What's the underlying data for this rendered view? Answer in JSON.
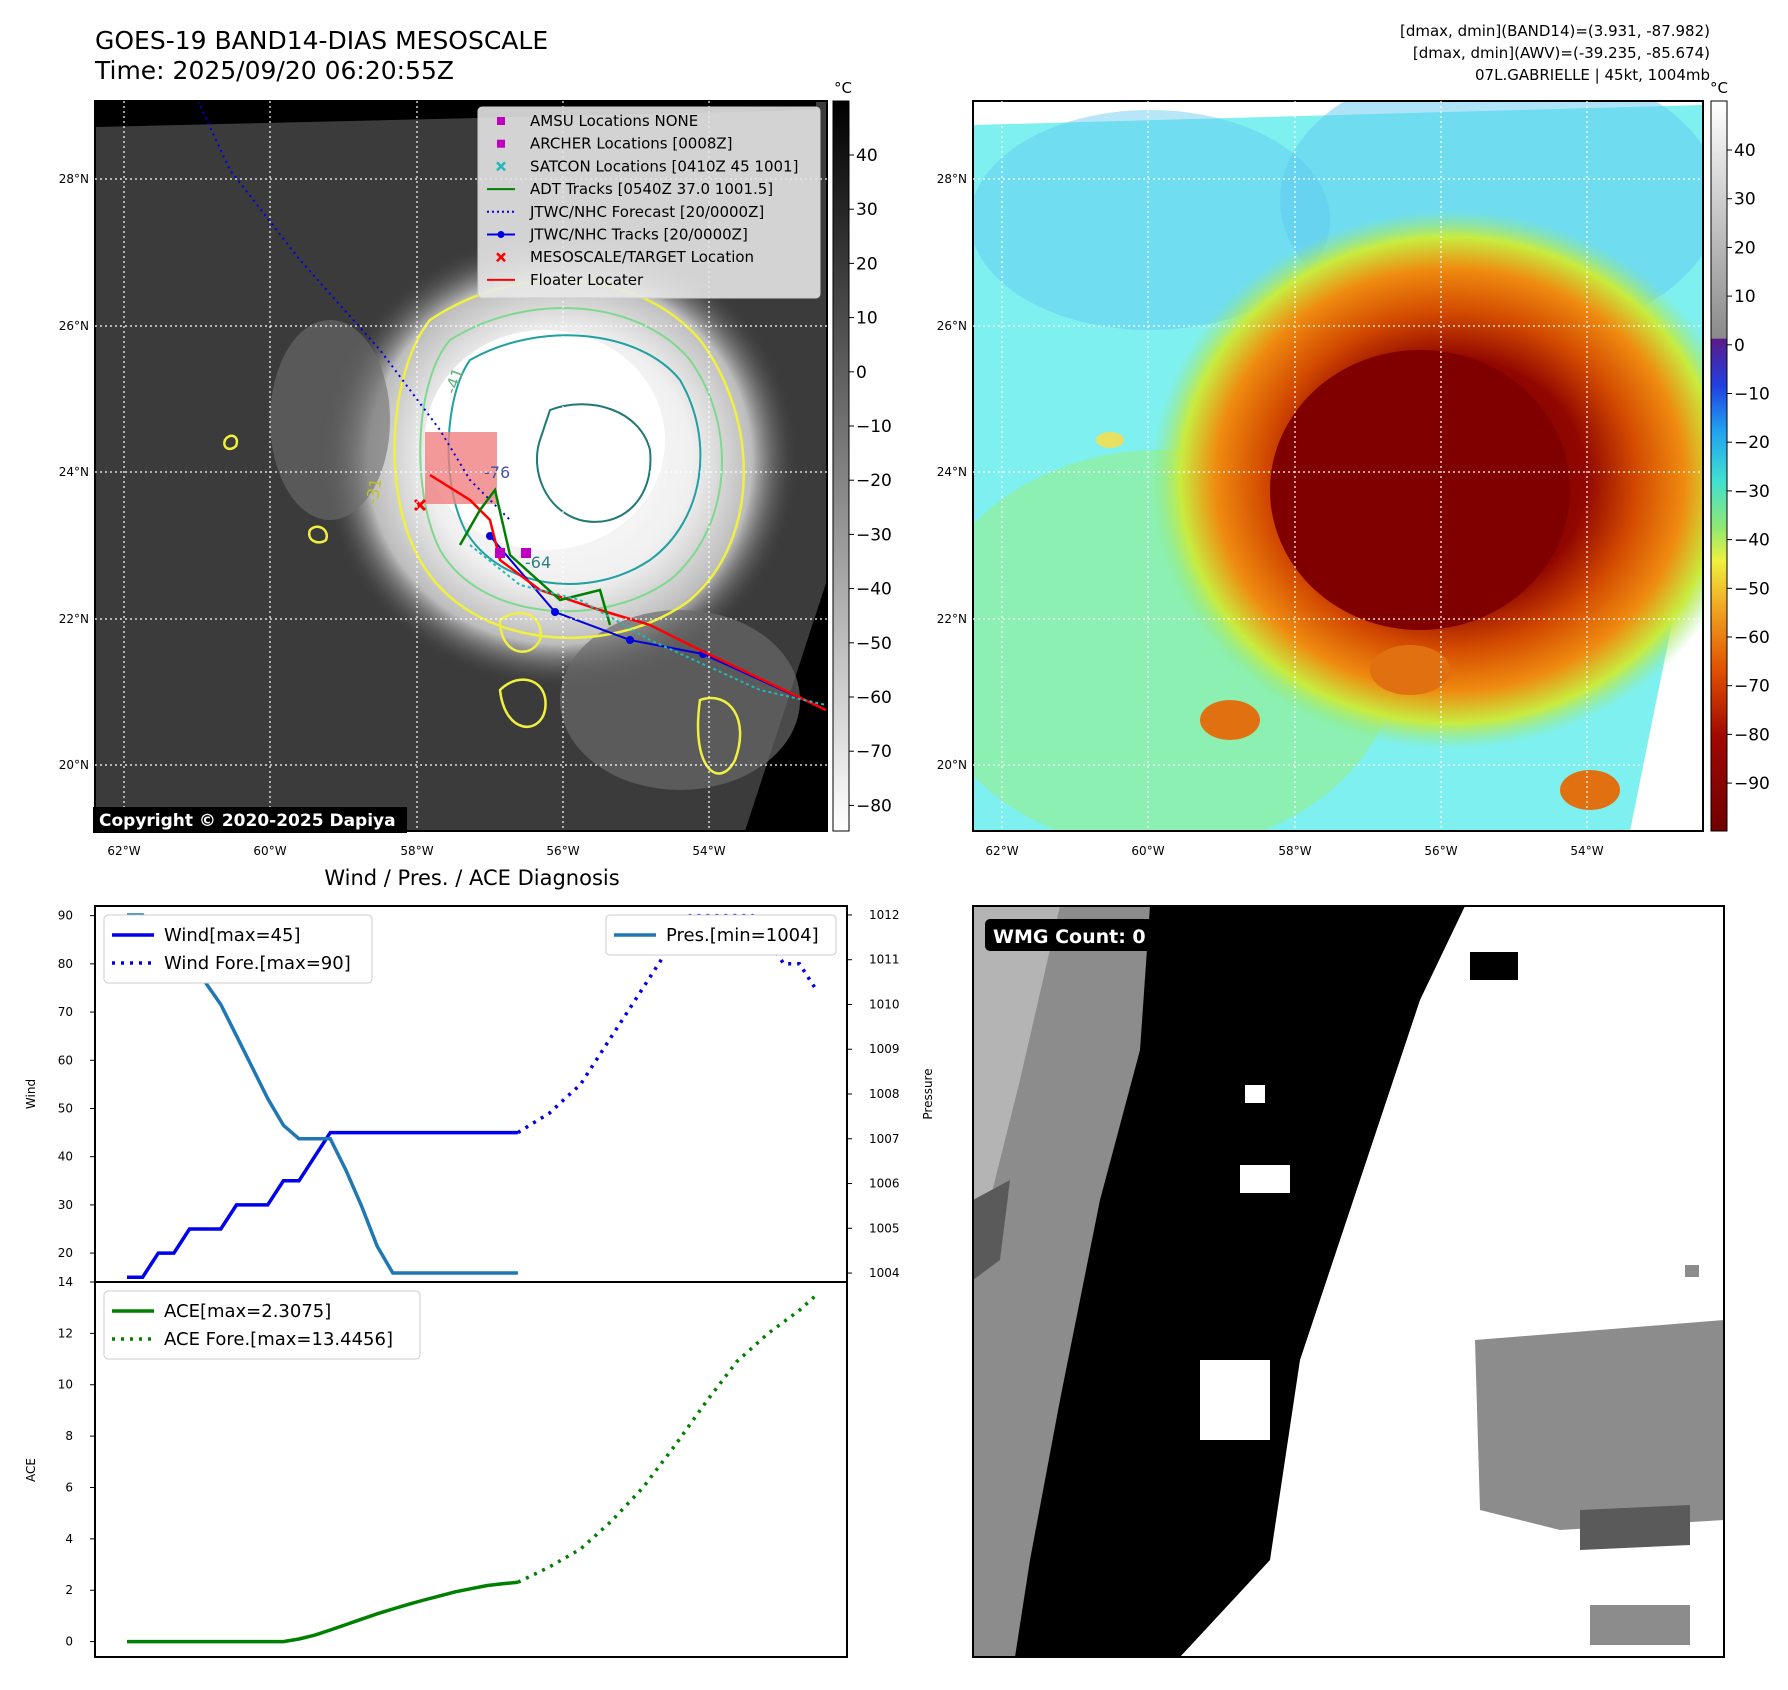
{
  "header": {
    "title_line1": "GOES-19 BAND14-DIAS MESOSCALE",
    "title_line2": "Time: 2025/09/20 06:20:55Z",
    "info_line1": "[dmax, dmin](BAND14)=(3.931, -87.982)",
    "info_line2": "[dmax, dmin](AWV)=(-39.235, -85.674)",
    "info_line3": "07L.GABRIELLE | 45kt, 1004mb"
  },
  "satellite_panels": {
    "lat_labels": [
      "28°N",
      "26°N",
      "24°N",
      "22°N",
      "20°N"
    ],
    "lon_labels": [
      "62°W",
      "60°W",
      "58°W",
      "56°W",
      "54°W"
    ],
    "colorbar_unit": "°C",
    "colorbar_ticks_left": [
      "40",
      "30",
      "20",
      "10",
      "0",
      "−10",
      "−20",
      "−30",
      "−40",
      "−50",
      "−60",
      "−70",
      "−80"
    ],
    "colorbar_ticks_right": [
      "40",
      "30",
      "20",
      "10",
      "0",
      "−10",
      "−20",
      "−30",
      "−40",
      "−50",
      "−60",
      "−70",
      "−80",
      "−90"
    ],
    "copyright": "Copyright © 2020-2025 Dapiya",
    "contour_labels": [
      "-76",
      "-64",
      "-31",
      "-41"
    ],
    "legend": [
      {
        "label": "AMSU Locations NONE",
        "color": "#c000c0",
        "marker": "square"
      },
      {
        "label": "ARCHER Locations [0008Z]",
        "color": "#c000c0",
        "marker": "square"
      },
      {
        "label": "SATCON Locations [0410Z 45 1001]",
        "color": "#20b8b8",
        "marker": "x"
      },
      {
        "label": "ADT Tracks [0540Z 37.0 1001.5]",
        "color": "#008000",
        "marker": "line"
      },
      {
        "label": "JTWC/NHC Forecast [20/0000Z]",
        "color": "#0000e0",
        "marker": "dotted"
      },
      {
        "label": "JTWC/NHC Tracks [20/0000Z]",
        "color": "#0000e0",
        "marker": "line-dot"
      },
      {
        "label": "MESOSCALE/TARGET Location",
        "color": "#ff0000",
        "marker": "x"
      },
      {
        "label": "Floater Locater",
        "color": "#ff0000",
        "marker": "line"
      }
    ]
  },
  "wmg": {
    "label": "WMG Count: 0"
  },
  "chart_data": [
    {
      "type": "line",
      "title": "Wind / Pres. / ACE Diagnosis",
      "ylabel": "Wind",
      "y2label": "Pressure",
      "ylim": [
        14,
        92
      ],
      "y2lim": [
        1003.8,
        1012.2
      ],
      "yticks": [
        20,
        30,
        40,
        50,
        60,
        70,
        80,
        90
      ],
      "y2ticks": [
        1004,
        1005,
        1006,
        1007,
        1008,
        1009,
        1010,
        1011,
        1012
      ],
      "x": [
        0,
        1,
        2,
        3,
        4,
        5,
        6,
        7,
        8,
        9,
        10,
        11,
        12,
        13,
        14,
        15,
        16,
        17,
        18,
        19,
        20,
        21,
        22,
        23,
        24,
        25,
        26,
        27,
        28,
        29,
        30,
        31,
        32,
        33,
        34,
        35,
        36,
        37,
        38,
        39,
        40,
        41,
        42,
        43,
        44
      ],
      "series": [
        {
          "name": "Wind[max=45]",
          "color": "#0000ee",
          "style": "solid",
          "x": [
            0,
            1,
            2,
            3,
            4,
            5,
            6,
            7,
            8,
            9,
            10,
            11,
            12,
            13,
            14,
            15,
            16,
            17,
            18,
            19,
            20,
            21,
            22,
            23,
            24,
            25
          ],
          "values": [
            15,
            15,
            20,
            20,
            25,
            25,
            25,
            30,
            30,
            30,
            35,
            35,
            40,
            45,
            45,
            45,
            45,
            45,
            45,
            45,
            45,
            45,
            45,
            45,
            45,
            45
          ]
        },
        {
          "name": "Wind Fore.[max=90]",
          "color": "#0000ee",
          "style": "dotted",
          "x": [
            25,
            26,
            27,
            28,
            29,
            30,
            31,
            32,
            33,
            34,
            35,
            36,
            37,
            38,
            39,
            40,
            41,
            42,
            43,
            44
          ],
          "values": [
            45,
            47,
            49,
            52,
            55,
            60,
            65,
            70,
            75,
            80,
            85,
            90,
            90,
            90,
            90,
            90,
            85,
            80,
            80,
            75
          ]
        },
        {
          "name": "Pres.[min=1004]",
          "color": "#1f77b4",
          "style": "solid",
          "axis": "right",
          "x": [
            0,
            1,
            2,
            3,
            4,
            5,
            6,
            7,
            8,
            9,
            10,
            11,
            12,
            13,
            14,
            15,
            16,
            17,
            18,
            19,
            20,
            21,
            22,
            23,
            24,
            25
          ],
          "values": [
            1012,
            1012,
            1011.6,
            1011.2,
            1011,
            1010.5,
            1010,
            1009.3,
            1008.6,
            1007.9,
            1007.3,
            1007,
            1007,
            1007,
            1006.3,
            1005.5,
            1004.6,
            1004,
            1004,
            1004,
            1004,
            1004,
            1004,
            1004,
            1004,
            1004
          ]
        }
      ]
    },
    {
      "type": "line",
      "ylabel": "ACE",
      "ylim": [
        -0.6,
        14
      ],
      "yticks": [
        0,
        2,
        4,
        6,
        8,
        10,
        12,
        14
      ],
      "series": [
        {
          "name": "ACE[max=2.3075]",
          "color": "#008000",
          "style": "solid",
          "x": [
            0,
            10,
            11,
            12,
            13,
            14,
            15,
            16,
            17,
            18,
            19,
            20,
            21,
            22,
            23,
            24,
            25
          ],
          "values": [
            0,
            0,
            0.1,
            0.25,
            0.45,
            0.66,
            0.87,
            1.08,
            1.27,
            1.45,
            1.62,
            1.78,
            1.94,
            2.06,
            2.18,
            2.25,
            2.3075
          ]
        },
        {
          "name": "ACE Fore.[max=13.4456]",
          "color": "#008000",
          "style": "dotted",
          "x": [
            25,
            27,
            29,
            31,
            33,
            35,
            37,
            39,
            41,
            43,
            44
          ],
          "values": [
            2.31,
            2.9,
            3.6,
            4.7,
            6.0,
            7.6,
            9.3,
            10.9,
            12.0,
            12.9,
            13.4456
          ]
        }
      ]
    }
  ]
}
